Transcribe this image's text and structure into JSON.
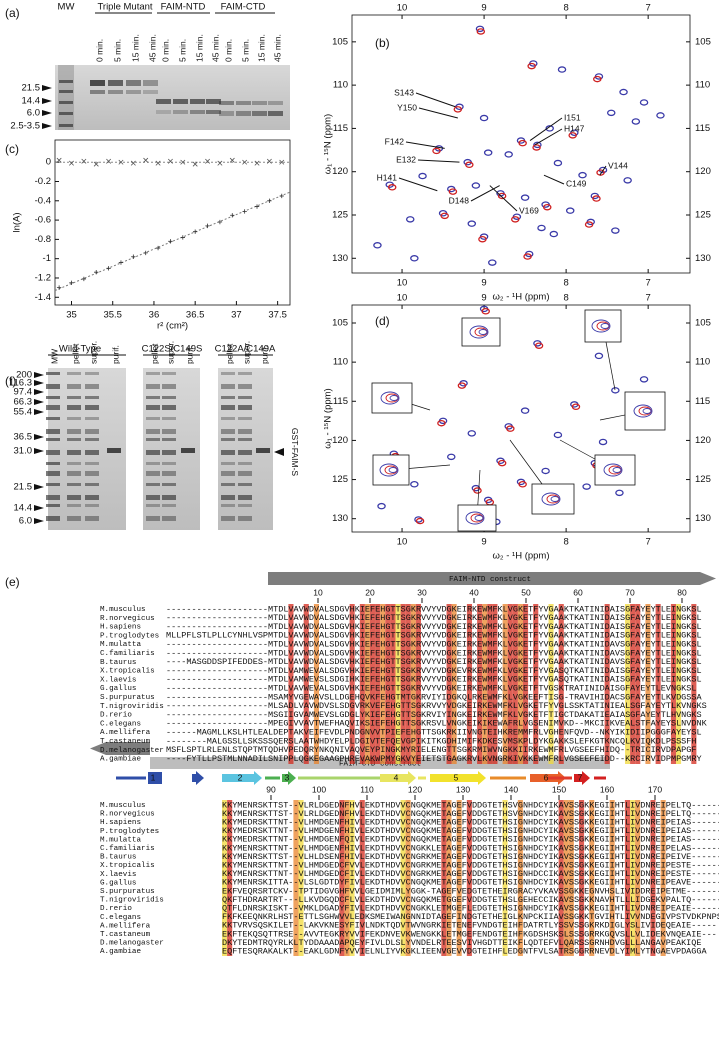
{
  "panels": [
    "(a)",
    "(b)",
    "(c)",
    "(d)",
    "(e)",
    "(f)"
  ],
  "gel_a": {
    "headers": [
      "MW",
      "Triple Mutant",
      "FAIM-NTD",
      "FAIM-CTD"
    ],
    "time_labels": [
      "0 min.",
      "5 min.",
      "15 min.",
      "45 min."
    ],
    "markers": [
      "21.5",
      "14.4",
      "6.0",
      "2.5-3.5"
    ]
  },
  "gel_f": {
    "headers": [
      "Wild-Type",
      "C122S/C149S",
      "C122A/C149A"
    ],
    "lanes": [
      "MW",
      "pellet",
      "super.",
      "purif."
    ],
    "markers": [
      "200",
      "116.3",
      "97.4",
      "66.3",
      "55.4",
      "36.5",
      "31.0",
      "21.5",
      "14.4",
      "6.0"
    ],
    "band_label": "GST-FAIM-S"
  },
  "chart_data": [
    {
      "type": "scatter",
      "x_label": "r² (cm²)",
      "y_label": "ln(A)",
      "xlim": [
        34.8,
        37.65
      ],
      "ylim": [
        -1.48,
        0.23
      ],
      "xticks": [
        35,
        35.5,
        36,
        36.5,
        37,
        37.5
      ],
      "yticks": [
        0,
        -0.2,
        -0.4,
        -0.6,
        -0.8,
        -1,
        -1.2,
        -1.4
      ],
      "series": [
        {
          "marker": "x",
          "color": "#555555",
          "x": [
            34.85,
            35.0,
            35.15,
            35.3,
            35.45,
            35.6,
            35.75,
            35.9,
            36.05,
            36.2,
            36.35,
            36.5,
            36.65,
            36.8,
            36.95,
            37.1,
            37.25,
            37.4,
            37.55
          ],
          "y": [
            0.02,
            -0.01,
            0.01,
            -0.02,
            0.01,
            0,
            -0.01,
            0.02,
            -0.01,
            0.01,
            0,
            -0.02,
            0.01,
            -0.01,
            0.02,
            0,
            -0.01,
            0.01,
            0
          ]
        },
        {
          "marker": "+",
          "color": "#333333",
          "x": [
            34.85,
            35.0,
            35.15,
            35.3,
            35.45,
            35.6,
            35.75,
            35.9,
            36.05,
            36.2,
            36.35,
            36.5,
            36.65,
            36.8,
            36.95,
            37.1,
            37.25,
            37.4,
            37.55
          ],
          "y": [
            -1.3,
            -1.25,
            -1.21,
            -1.14,
            -1.1,
            -1.04,
            -0.98,
            -0.94,
            -0.89,
            -0.82,
            -0.78,
            -0.72,
            -0.66,
            -0.62,
            -0.55,
            -0.51,
            -0.46,
            -0.4,
            -0.35
          ]
        }
      ],
      "fit": {
        "x": [
          34.8,
          37.65
        ],
        "y": [
          -1.33,
          -0.31
        ]
      }
    },
    {
      "type": "spectrum",
      "x_label": "ω₂ - ¹H (ppm)",
      "y_label": "ω₁ - ¹⁵N (ppm)",
      "xlim": [
        10.61,
        6.49
      ],
      "ylim": [
        131.7,
        101.9
      ],
      "xticks": [
        10,
        9,
        8,
        7
      ],
      "yticks": [
        105,
        110,
        115,
        120,
        125,
        130
      ],
      "series": [
        {
          "color": "#3a3aa8",
          "x": [
            9.05,
            8.4,
            8.05,
            7.6,
            7.3,
            7.05,
            6.85,
            9.3,
            9.0,
            8.55,
            8.2,
            7.9,
            7.45,
            7.15,
            9.55,
            9.2,
            8.95,
            8.7,
            8.35,
            8.1,
            7.8,
            7.55,
            7.25,
            10.15,
            9.75,
            9.4,
            9.1,
            8.8,
            8.5,
            8.25,
            7.95,
            7.65,
            9.9,
            9.5,
            9.15,
            8.6,
            8.3,
            7.7,
            10.3,
            9.0,
            8.15,
            7.4,
            9.85,
            8.9,
            8.45
          ],
          "y": [
            103.5,
            107.5,
            108.2,
            109.0,
            110.8,
            112.0,
            113.5,
            112.5,
            113.8,
            116.4,
            115.0,
            115.5,
            113.2,
            114.2,
            117.3,
            118.9,
            117.8,
            118.0,
            116.9,
            119.0,
            120.4,
            119.8,
            121.0,
            121.5,
            120.5,
            122.0,
            121.6,
            122.5,
            123.0,
            123.8,
            124.5,
            122.8,
            125.5,
            124.8,
            126.0,
            125.2,
            126.5,
            125.8,
            128.5,
            127.5,
            127.2,
            126.8,
            130.0,
            130.5,
            129.5
          ]
        },
        {
          "color": "#d02020",
          "x": [
            9.04,
            8.42,
            7.62,
            9.32,
            8.53,
            7.92,
            9.58,
            9.18,
            8.36,
            7.58,
            10.12,
            9.38,
            8.78,
            8.23,
            7.63,
            9.48,
            8.62,
            7.72,
            9.02,
            8.47
          ],
          "y": [
            103.8,
            107.8,
            109.3,
            112.8,
            116.7,
            115.8,
            117.6,
            119.2,
            117.2,
            120.1,
            121.8,
            122.3,
            122.8,
            124.1,
            123.1,
            125.1,
            125.5,
            126.1,
            127.8,
            129.8
          ]
        }
      ],
      "annotations": [
        {
          "text": "S143",
          "x": 9.35,
          "y": 112.5
        },
        {
          "text": "Y150",
          "x": 9.32,
          "y": 113.8
        },
        {
          "text": "I151",
          "x": 8.44,
          "y": 116.4
        },
        {
          "text": "H147",
          "x": 8.38,
          "y": 116.9
        },
        {
          "text": "F142",
          "x": 9.48,
          "y": 117.3
        },
        {
          "text": "E132",
          "x": 9.3,
          "y": 118.9
        },
        {
          "text": "V144",
          "x": 7.59,
          "y": 120.4
        },
        {
          "text": "H141",
          "x": 9.57,
          "y": 122.2
        },
        {
          "text": "C149",
          "x": 8.27,
          "y": 120.4
        },
        {
          "text": "D148",
          "x": 8.81,
          "y": 121.6
        },
        {
          "text": "V169",
          "x": 8.93,
          "y": 121.6
        }
      ]
    },
    {
      "type": "spectrum",
      "x_label": "ω₂ - ¹H (ppm)",
      "y_label": "ω₁ - ¹⁵N (ppm)",
      "xlim": [
        10.61,
        6.49
      ],
      "ylim": [
        131.7,
        102.7
      ],
      "xticks": [
        10,
        9,
        8,
        7
      ],
      "yticks": [
        105,
        110,
        115,
        120,
        125,
        130
      ],
      "series": [
        {
          "color": "#3a3aa8",
          "x": [
            9.0,
            8.35,
            7.6,
            7.05,
            9.25,
            8.5,
            7.9,
            7.4,
            9.5,
            9.15,
            8.7,
            8.1,
            7.55,
            10.1,
            9.4,
            8.8,
            8.25,
            7.65,
            9.85,
            9.1,
            8.55,
            7.75,
            10.25,
            8.95,
            8.1,
            7.35,
            9.8,
            8.85
          ],
          "y": [
            103.2,
            107.6,
            109.2,
            112.2,
            112.7,
            116.2,
            115.4,
            113.6,
            117.5,
            119.1,
            118.2,
            119.3,
            120.2,
            121.7,
            122.1,
            122.6,
            123.9,
            122.9,
            125.6,
            126.1,
            125.3,
            125.9,
            128.4,
            127.6,
            127.0,
            126.7,
            130.1,
            130.4
          ]
        },
        {
          "color": "#d02020",
          "x": [
            8.98,
            8.33,
            9.27,
            7.88,
            9.52,
            8.68,
            10.08,
            8.78,
            7.63,
            9.08,
            8.53,
            8.93,
            9.78
          ],
          "y": [
            103.5,
            107.9,
            113.0,
            115.7,
            117.8,
            118.5,
            122.0,
            122.9,
            123.2,
            126.4,
            125.6,
            127.9,
            130.3
          ]
        }
      ]
    }
  ],
  "alignment": {
    "ntd_label": "FAIM-NTD construct",
    "ctd_label": "FAIM-CTD construct",
    "ss_labels": [
      "1",
      "2",
      "3",
      "4",
      "5",
      "6",
      "7"
    ],
    "species": [
      "M.musculus",
      "R.norvegicus",
      "H.sapiens",
      "P.troglodytes",
      "M.mulatta",
      "C.familiaris",
      "B.taurus",
      "X.tropicalis",
      "X.laevis",
      "G.gallus",
      "S.purpuratus",
      "T.nigroviridis",
      "D.rerio",
      "C.elegans",
      "A.mellifera",
      "T.castaneum",
      "D.melanogaster",
      "A.gambiae"
    ],
    "block1": {
      "ruler": [
        10,
        20,
        30,
        40,
        50,
        60,
        70,
        80
      ],
      "rows": [
        "--------------------MTDLVAVWDVALSDGVHKIEFEHGTTSGKRVVYVDGKEIRKEWMFKLVGKETFYVGAAKTKATINIDAISGFAYEYTLEINGKSL",
        "--------------------MTDLVAVWDVALSDGVHKIEFEHGTTSGKRVVYVDGKEIRKEWMFKLVGKETFYVGAAKTKATINIDAISGFAYEYTLEINGKSL",
        "--------------------MTDLVAVWDVALSDGVHKIEFEHGTTSGKRVVYVDGKEIRKEWMFKLVGKETFYVGAAKTKATINIDAISGFAYEYTLEINGKSL",
        "MLLPFLSTLPLLCYNHLVSPMTDLVAVWDVALSDGVHKIEFEHGTTSGKRVVYVDGKEIRKEWMFKLVGKETFYVGAAKTKATINIDAISGFAYEYTLEINGKSL",
        "--------------------MTDLVAVWDVALSDGVHKIEFEHGTTSGKRVVYVDGKEIRKEWMFKLVGKETFYVGAAKTKATINIDAVSGFAYEYTLEINGKSL",
        "--------------------MTDLVAVWDVALSDGVHKIEFEHGTTSGKRVVYVDGKEIRKEWMFKLVGKETFYVGAAKTKATINIDAVSGFAYEYTLEINGKSL",
        "----MASGDDSPIFEDDES-MTDLVAVWDVALSDGVHKIEFEHGTTSGKRVVYVDGKEIRKEWMFKLVGKETFYVGAAKTKATINIDAVSGFAYEYTLEINGKSL",
        "--------------------MTDLVAMWEVALSDGVHKIEFEHGTTSGKRVVYVDGKEVRKEWMFKLVGKETFYVGASQTKATINIDAISGFAYEYTLEINGKSL",
        "--------------------MTDLVAMWEVSLSDGIHKIEFEHGTTSGKRVVYVDGKEIRKEWMFKLVGKETFYVGASQTKATINIDAISGFAYEYTLEINGKSL",
        "--------------------MTDLVAVWEVALSDGVHKIEFEHGTTSGKRVVYVDGKEIRKEWMFKLVGKETFTVGSKTRATINIDAISGFAYEYTLEVNGKSL",
        "--------------------MSAMYVGEWAVSLLDGEHQVKFEHGTMTGKRVIYIDGKQLRKEWMFKLVGKEEFTISG-TRAVIHIDACSGFAYEYTLKVDGSSA",
        "--------------------MLSADLVAVWDVSLSDGVRKVEFEHGTTSGKRVVYVDGKEIRKEWMFKLVGKETFYVGLSSKTATINIEALSGFAYEYTLKVNGKS",
        "--------------------MSGIIGVAMWEVSLGDGLYKIEFEHGTTSGKRVIYINGKEIRKEWMFKLVGKETFTIGCTDAKATIEAIASGFAYEYTLHVNGKS",
        "--------------------MPEGIVVAVTWEFHAQVIKSIEFEHGTTSGKRSVLVNGKEIKIKEWAFRLVGSENIMVKD--MKCIIKVEALSTFAYEYSLNVDNK",
        "------MAGMLLKSLHTLEALDEPTAKVEIFEVDLPNDGNVVTPIEFEHGTTSGKRKIIVNGTEIHKREMMFRLVGHENFQVD--NKYIKIDIIPGGGFAYEYSL",
        "--------MALGSSLLSKSSSQERSLAATWHDYELPLDGIVTEFQEVGPIKITKGDHIMIFKDKESVMSKPLDYKGAKKSLEFKGTKNCQLKVIQKDLPSSSFH",
        "MSFLSPTLRLENLSTQPTMTQDHVPEDQRYNKQNIVAQVEYPINGKMYRIELENGTTSGKRMIWVNGKKIIRKEWMFRLVGSEEFHIDQ--TRICIRVDPAPGF",
        "----FYTLLPSTMLNNADILSNIPPLQGKEGAAGPHREVAKWPMYGKVYEIETSTGAGKRVLKVNGRKIVKKEWMFRLVGSEEFEIDD--KRCIRVIDPMPGMRY"
      ]
    },
    "block2": {
      "ruler": [
        90,
        100,
        110,
        120,
        130,
        140,
        150,
        160,
        170
      ],
      "rows": [
        "KKYMENRSKTTST--VLRLDGEDNFHVLEKDTHDVVCNGQKMETAGEFVDDGTETHSVGNHDCYIKAVSSGKKEGIIHTLIVDNREIPELTQ-------",
        "KKYMENRSKTTST--VLRLDGEDNFHVLEKDTHDVVCNGQKMETAGEFVDDGTETHSVGNHDCYIKAVSSGKKEGIIHTLIVDNREIPELTQ-------",
        "KKYMEDRSKTTNT--VLHMDGENFHIVLEKDTHDVVCNGQKMETAGEFVDDGTETHSIGNHDCYIKAVSSGKKEGIIHTLIVDNREIPEIAS-------",
        "KKYMEDRSKTTNT--VLHMDGENFHIVLEKDTHDVVCNGQKMETAGEFVDDGTETHSIGNHDCYIKAVSSGKKEGIIHTLIVDNREIPEIAS-------",
        "KKYMEDRSKTTNT--VLHMDGENFQIVLEKDTHDVVCNGQKMETAGEFVDDGTETHSIGNHDCYIKAVSSGKKEGIIHTLIVDNREIPEIAS-------",
        "KKYMENRSKTTNT--VLHMDGENFHIVLEKDTHDVVCNGKKLETAGEFVDDGTETHSIGNHDCYIKAVSSGKKEGIIHTLIVDNREIPELAS-------",
        "KKYMENRSKTTST--VLHLDSENFHIVLEKDTHDVVCNGRKMETAGEFVDDGTETHSIGNHDCYIKAVSSGKKEGIIHTLIVDNREIPEIVE-------",
        "KKYMENRSKTTNT--VLHMDGEDCFVVLEKDTHDVVCNGRKMETAGEFVDDGTETHSIGNHDCYIKAVSSGKKEGIIHTLIVDNREIPESTE-------",
        "KKYMENRSKTTNT--VLHMDGEDCFIVLEKDTHDVVCNGRKMETAGEFVDDGTETHSIGNHDCCIKAVSSGKKEGIIHTLIVDNREIPESTE-------",
        "KKYMENRSKITTA--VLSLGDTDYFIVLEKDTHDVVCNGQKMETAGEFVDDGTETHSIGNHDCYIKAVSSGKKEGIIHTLIVDNREIPEAVE-------",
        "EKFVEQRSRTCKV--TPTIDGVGHFVVLGEIDMIMLYGGK-TAGEFVEDGTETHEIRGRACYVKAVSSGKKEGNVHSLIVIDDREIPETME-------",
        "QKFTHDRARTRT---LLKVDGQDCFLVLEKDTHDVVCNGQKMETGGEFVDDGTETHSLGEHECCIKAVSSGKKNAVHTLLLIDGEKVPALTQ-------",
        "QTFLDNRSKISKT--VMKLDGADYFIVLEKDTHDVVCNGKKLETMGEFLEDGTETHSIGNHDCYIKAVSSGKKEGIIHTLIVDNREIPEAIE-------",
        "FKFKEEQNKRLHST-ETTLSGHWVVLEDKSMEIWANGNNIDTAGEFINDGTETHEIGLKNPCKIIAVSSGKKTGVIHTLIVVNDEGIVPSTVDKPNPS",
        "KKTVRVSQSKILET--LAKVKNESYFIVLNDKTQDVTWVNGRKIETENEFVNDGTEIHFDATRTLYSSVSSGKRKDIGLYSLIVIDEQEAIE-----",
        "EKFTEKQSQTTRSE--AVVTEGKRYVVIFEKDNVEVKWENGKKLETMGEFENDGTEIHFKGDSHSKSLSSSGRRKGQVSLLVLIDEKVNQEAIE---",
        "DKYTEDMTRQYRLKLTYDDAAADAPQEYFIVLDLSLYVNDELRTEESVIVHGDTTEIKFLQDTEFVLQARSSGRNHDVGLLLANGAVPEAKIQE",
        "EQFTESQRAKALKT--EAKLGDNFYVVIELNLIYVKGKLIEENVGEVVDGTEIHFLEDGNTFVLSATRSGGRRNEVDLYIMLYTNGAEVPDAGGA"
      ]
    }
  }
}
